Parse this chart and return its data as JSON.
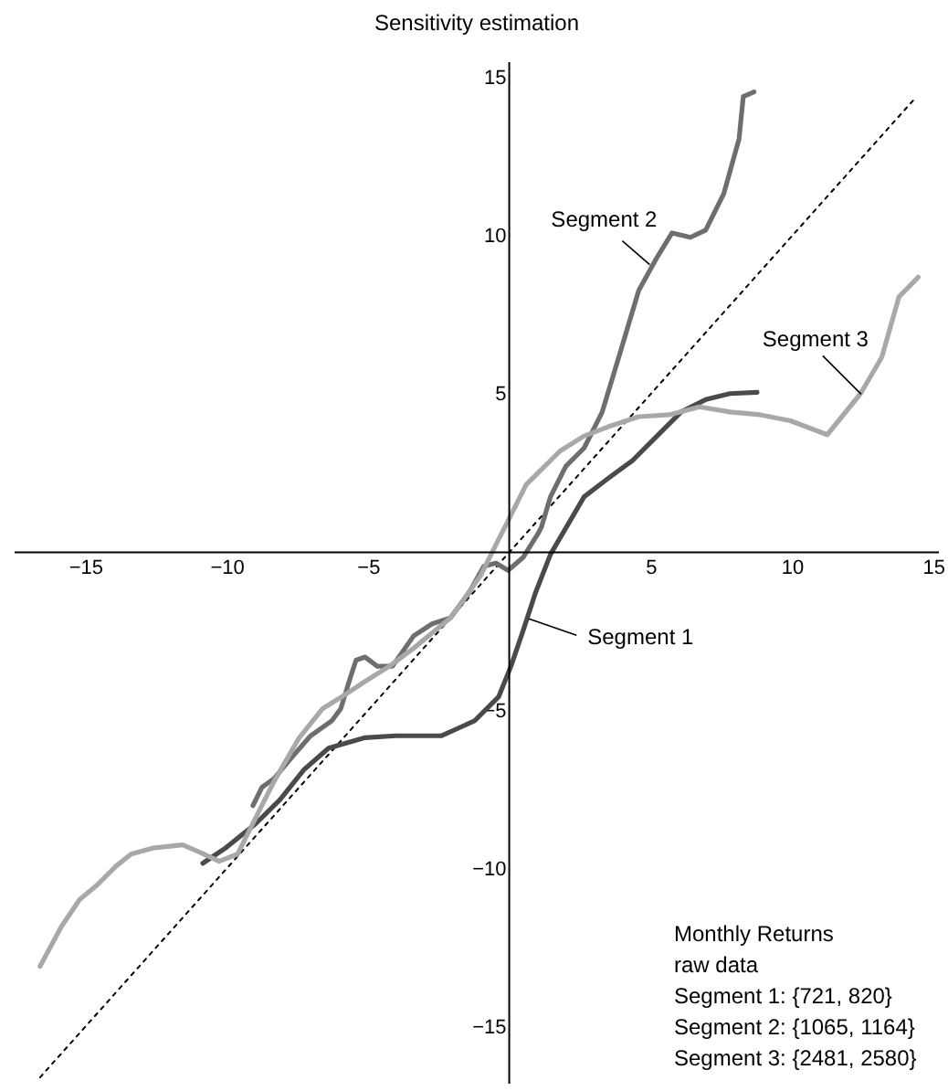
{
  "chart_data": {
    "type": "line",
    "title": "Sensitivity estimation",
    "xlim": [
      -17.5,
      15.2
    ],
    "ylim": [
      -16.8,
      15.5
    ],
    "xticks": [
      -15,
      -10,
      -5,
      5,
      10,
      15
    ],
    "yticks": [
      -15,
      -10,
      -5,
      5,
      10,
      15
    ],
    "grid": false,
    "marker": "none",
    "series": [
      {
        "line_style": "dotted",
        "color": "#000000",
        "x": [
          -16.6,
          14.4
        ],
        "values": [
          -16.6,
          14.4
        ]
      },
      {
        "line_style": "solid",
        "color": "#4a4a4a",
        "x": [
          -10.84,
          -10.04,
          -8.97,
          -8.11,
          -7.25,
          -6.39,
          -5.1,
          -4.02,
          -2.41,
          -1.23,
          -0.37,
          0.06,
          0.5,
          0.92,
          1.46,
          2.65,
          3.5,
          4.37,
          5.23,
          6.08,
          6.95,
          7.81,
          8.77
        ],
        "values": [
          -9.83,
          -9.35,
          -8.58,
          -7.82,
          -6.86,
          -6.19,
          -5.86,
          -5.8,
          -5.8,
          -5.33,
          -4.56,
          -3.6,
          -2.45,
          -1.3,
          -0.06,
          1.76,
          2.34,
          2.91,
          3.68,
          4.44,
          4.83,
          5.02,
          5.06
        ]
      },
      {
        "line_style": "solid",
        "color": "#6e6e6e",
        "x": [
          -9.07,
          -8.75,
          -8.32,
          -7.68,
          -7.03,
          -6.28,
          -5.96,
          -5.63,
          -5.42,
          -5.1,
          -4.67,
          -4.13,
          -3.38,
          -2.73,
          -2.08,
          -1.44,
          -0.9,
          -0.47,
          -0.04,
          0.5,
          1.03,
          1.14,
          1.46,
          2.0,
          2.65,
          3.29,
          3.94,
          4.58,
          5.23,
          5.76,
          6.41,
          6.95,
          7.59,
          8.13,
          8.28,
          8.66
        ],
        "values": [
          -8.01,
          -7.43,
          -7.15,
          -6.47,
          -5.8,
          -5.33,
          -4.94,
          -3.98,
          -3.41,
          -3.31,
          -3.6,
          -3.6,
          -2.64,
          -2.26,
          -2.07,
          -1.3,
          -0.44,
          -0.34,
          -0.57,
          -0.15,
          0.61,
          0.8,
          1.76,
          2.72,
          3.3,
          4.44,
          6.36,
          8.28,
          9.33,
          10.1,
          9.96,
          10.19,
          11.34,
          13.07,
          14.41,
          14.56
        ]
      },
      {
        "line_style": "solid",
        "color": "#a8a8a8",
        "x": [
          -16.6,
          -15.85,
          -15.2,
          -14.56,
          -13.91,
          -13.38,
          -12.62,
          -11.55,
          -10.9,
          -10.26,
          -9.61,
          -8.97,
          -8.32,
          -7.46,
          -6.6,
          -5.74,
          -5.1,
          -4.24,
          -3.38,
          -2.08,
          -1.01,
          -0.37,
          -0.15,
          0.6,
          1.79,
          2.65,
          3.5,
          4.58,
          5.66,
          6.73,
          7.81,
          8.88,
          9.95,
          11.25,
          12.43,
          13.18,
          13.79,
          14.47
        ],
        "values": [
          -13.09,
          -11.84,
          -10.98,
          -10.5,
          -9.92,
          -9.54,
          -9.35,
          -9.25,
          -9.5,
          -9.77,
          -9.54,
          -8.39,
          -7.24,
          -5.9,
          -4.94,
          -4.46,
          -4.08,
          -3.6,
          -3.03,
          -2.07,
          -0.73,
          0.42,
          0.8,
          2.14,
          3.2,
          3.68,
          3.97,
          4.29,
          4.35,
          4.6,
          4.44,
          4.35,
          4.16,
          3.72,
          5.02,
          6.17,
          8.08,
          8.7
        ]
      }
    ],
    "annotations": [
      {
        "text": "Segment 2",
        "x": 4.97,
        "y": 9.1
      },
      {
        "text": "Segment 3",
        "x": 12.45,
        "y": 5.0
      },
      {
        "text": "Segment 1",
        "x": 0.7,
        "y": -2.1
      },
      "Monthly Returns",
      "raw data",
      "Segment 1:    {721,   820}",
      "Segment 2:   {1065, 1164}",
      "Segment 3:   {2481, 2580}"
    ]
  }
}
